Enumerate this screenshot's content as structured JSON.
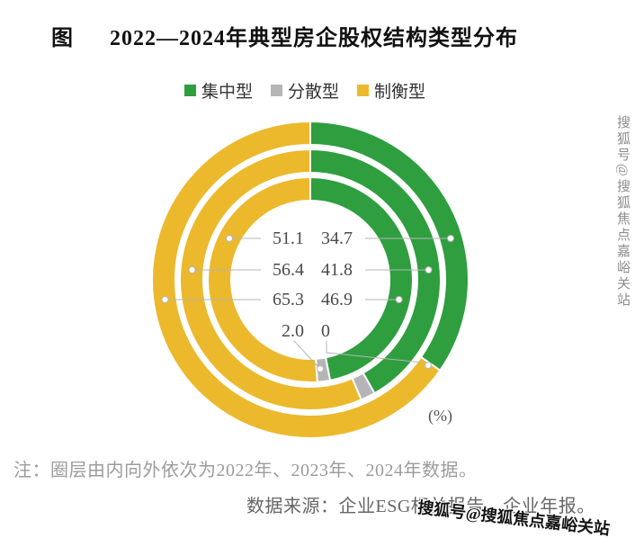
{
  "header": {
    "prefix": "图",
    "title": "2022—2024年典型房企股权结构类型分布"
  },
  "chart_data": {
    "type": "donut",
    "unit": "(%)",
    "legend": [
      {
        "key": "concentrated",
        "label": "集中型",
        "color": "#2f9e3f"
      },
      {
        "key": "dispersed",
        "label": "分散型",
        "color": "#b5b5b7"
      },
      {
        "key": "balanced",
        "label": "制衡型",
        "color": "#ecb92c"
      }
    ],
    "rings": [
      {
        "year": "2022",
        "position": "inner",
        "segments": [
          {
            "key": "concentrated",
            "value": 46.9
          },
          {
            "key": "dispersed",
            "value": 2.0
          },
          {
            "key": "balanced",
            "value": 51.1
          }
        ]
      },
      {
        "year": "2023",
        "position": "middle",
        "segments": [
          {
            "key": "concentrated",
            "value": 41.8
          },
          {
            "key": "dispersed",
            "value": 1.8
          },
          {
            "key": "balanced",
            "value": 56.4
          }
        ]
      },
      {
        "year": "2024",
        "position": "outer",
        "segments": [
          {
            "key": "concentrated",
            "value": 34.7
          },
          {
            "key": "dispersed",
            "value": 0
          },
          {
            "key": "balanced",
            "value": 65.3
          }
        ]
      }
    ],
    "center_label_rows": [
      {
        "left": "51.1",
        "right": "34.7"
      },
      {
        "left": "56.4",
        "right": "41.8"
      },
      {
        "left": "65.3",
        "right": "46.9"
      },
      {
        "left": "2.0",
        "right": "0"
      }
    ]
  },
  "footer": {
    "note": "注：圈层由内向外依次为2022年、2023年、2024年数据。",
    "source": "数据来源：企业ESG相关报告、企业年报。"
  },
  "watermark": {
    "text": "搜狐号@搜狐焦点嘉峪关站"
  }
}
